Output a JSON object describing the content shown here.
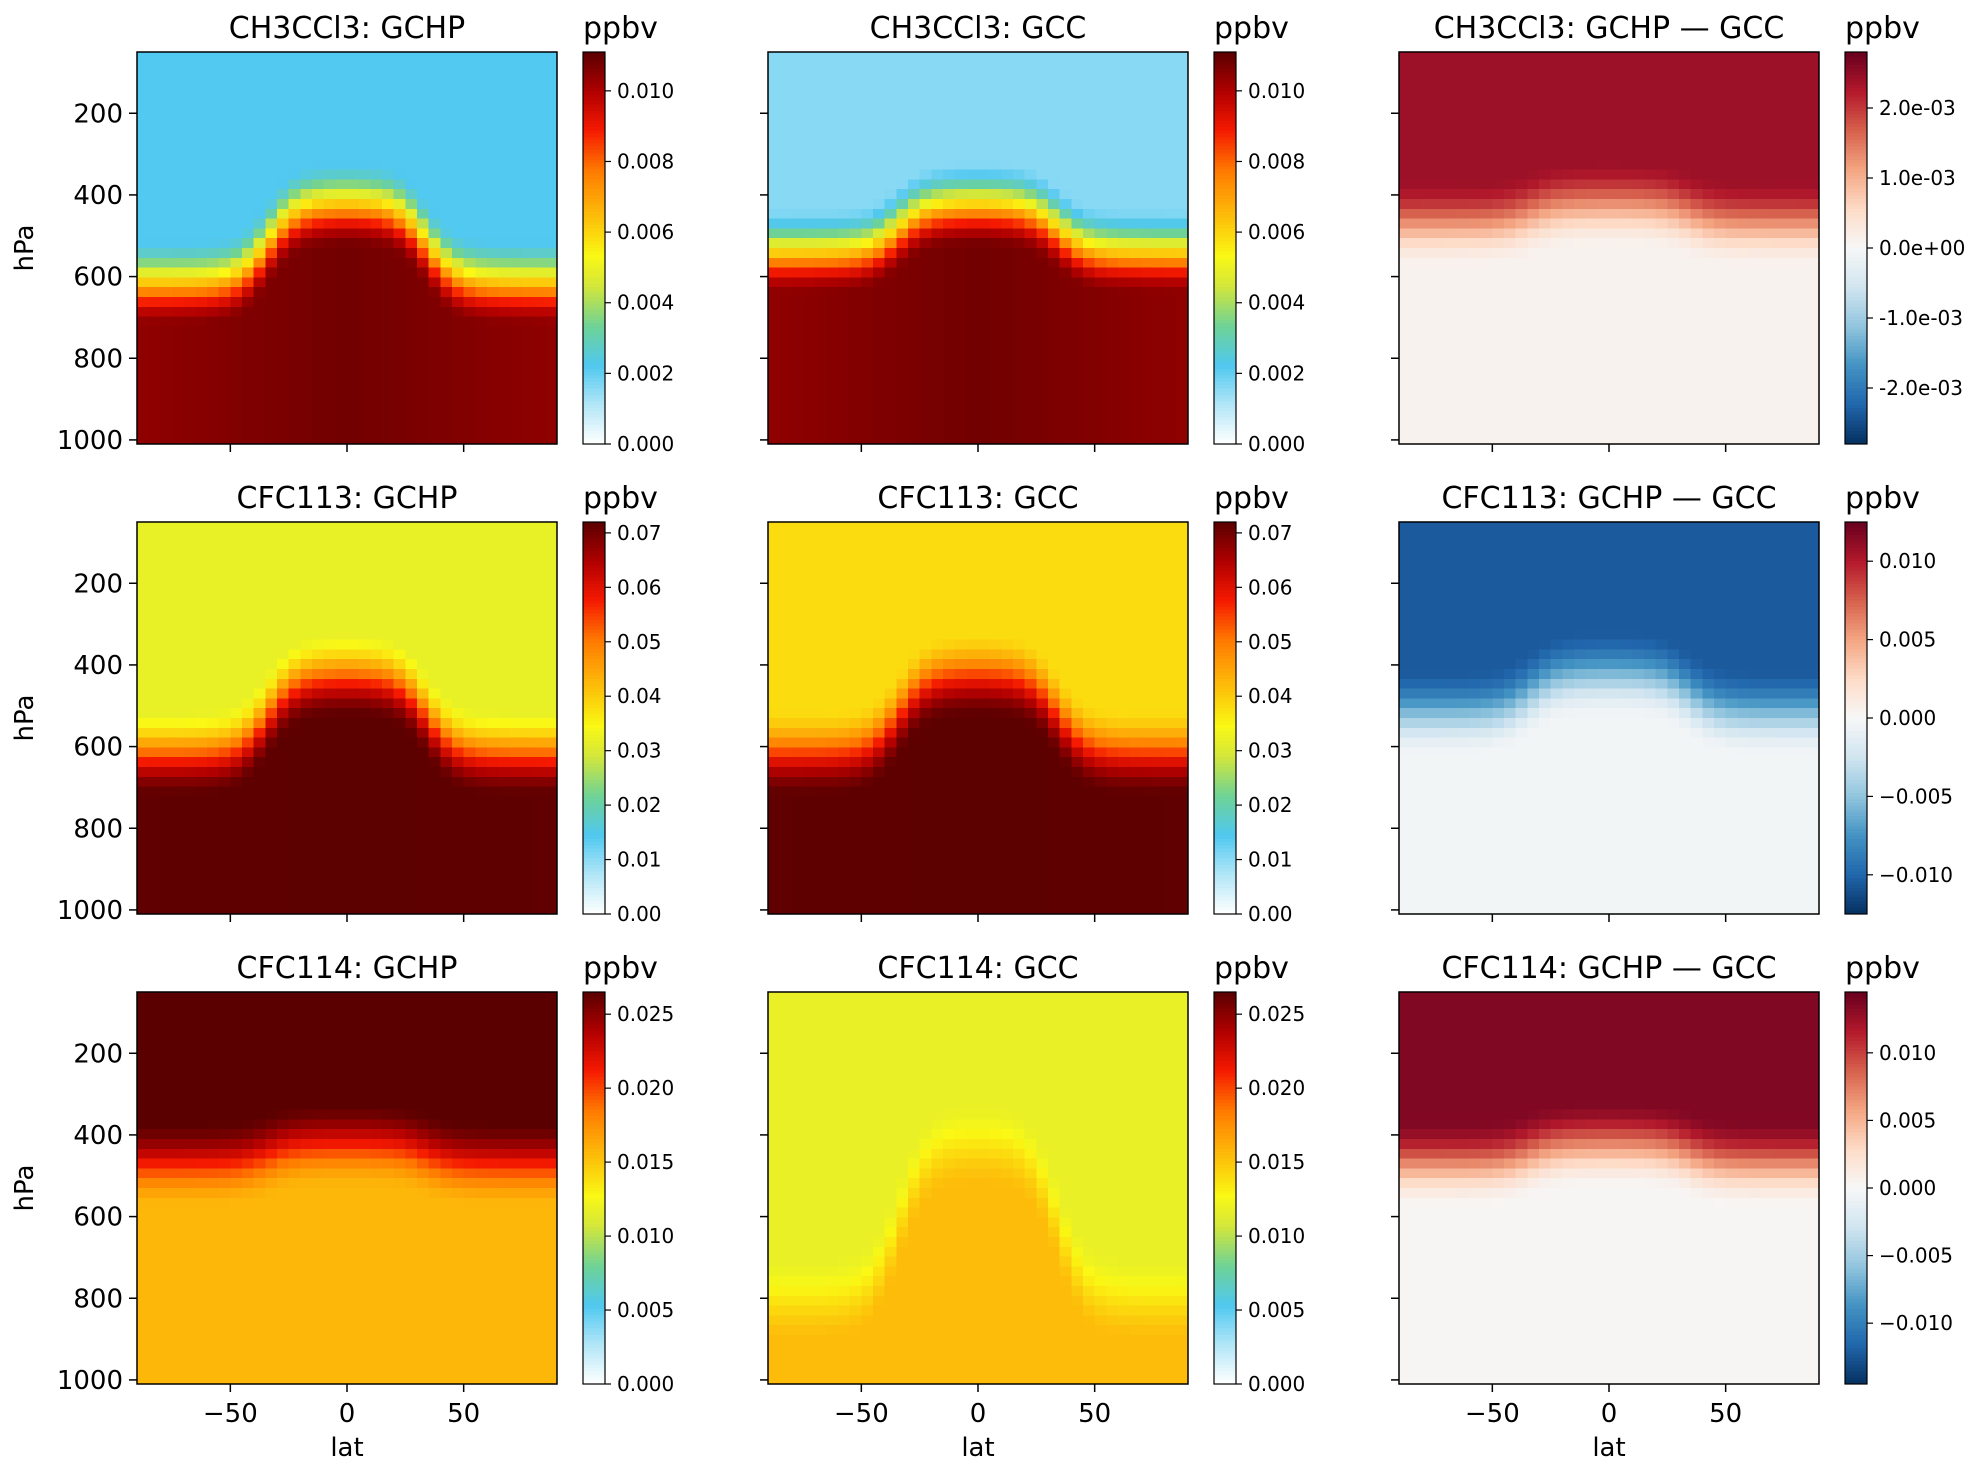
{
  "chart_data": {
    "type": "heatmap",
    "figure": "zonal mean vertical cross-sections",
    "rows": [
      {
        "species": "CH3CCl3",
        "panels": [
          {
            "title": "CH3CCl3: GCHP",
            "cbar_label": "ppbv",
            "colormap": "WhGrYlRd",
            "vmin": 0.0,
            "vmax": 0.0111,
            "cbar_ticks": [
              0.0,
              0.002,
              0.004,
              0.006,
              0.008,
              0.01
            ],
            "cbar_tick_labels": [
              "0.000",
              "0.002",
              "0.004",
              "0.006",
              "0.008",
              "0.010"
            ],
            "pattern": {
              "trop": 0.0104,
              "core": 0.0108,
              "top": 0.0022,
              "strat_start": 0.3,
              "width": 0.22
            }
          },
          {
            "title": "CH3CCl3: GCC",
            "cbar_label": "ppbv",
            "colormap": "WhGrYlRd",
            "vmin": 0.0,
            "vmax": 0.0111,
            "cbar_ticks": [
              0.0,
              0.002,
              0.004,
              0.006,
              0.008,
              0.01
            ],
            "cbar_tick_labels": [
              "0.000",
              "0.002",
              "0.004",
              "0.006",
              "0.008",
              "0.010"
            ],
            "pattern": {
              "trop": 0.0104,
              "core": 0.0108,
              "top": 0.0016,
              "strat_start": 0.38,
              "width": 0.22
            }
          },
          {
            "title": "CH3CCl3: GCHP — GCC",
            "cbar_label": "ppbv",
            "colormap": "RdBu_r",
            "vmin": -0.0028,
            "vmax": 0.0028,
            "cbar_ticks": [
              -0.002,
              -0.001,
              0.0,
              0.001,
              0.002
            ],
            "cbar_tick_labels": [
              "-2.0e-03",
              "-1.0e-03",
              "0.0e+00",
              "1.0e-03",
              "2.0e-03"
            ],
            "pattern": {
              "trop": 0.0001,
              "core": 0.0001,
              "top": 0.0024,
              "strat_start": 0.45,
              "width": 0.22
            }
          }
        ]
      },
      {
        "species": "CFC113",
        "panels": [
          {
            "title": "CFC113: GCHP",
            "cbar_label": "ppbv",
            "colormap": "WhGrYlRd",
            "vmin": 0.0,
            "vmax": 0.072,
            "cbar_ticks": [
              0.0,
              0.01,
              0.02,
              0.03,
              0.04,
              0.05,
              0.06,
              0.07
            ],
            "cbar_tick_labels": [
              "0.00",
              "0.01",
              "0.02",
              "0.03",
              "0.04",
              "0.05",
              "0.06",
              "0.07"
            ],
            "pattern": {
              "trop": 0.0715,
              "core": 0.0718,
              "top": 0.032,
              "strat_start": 0.3,
              "width": 0.22
            }
          },
          {
            "title": "CFC113: GCC",
            "cbar_label": "ppbv",
            "colormap": "WhGrYlRd",
            "vmin": 0.0,
            "vmax": 0.072,
            "cbar_ticks": [
              0.0,
              0.01,
              0.02,
              0.03,
              0.04,
              0.05,
              0.06,
              0.07
            ],
            "cbar_tick_labels": [
              "0.00",
              "0.01",
              "0.02",
              "0.03",
              "0.04",
              "0.05",
              "0.06",
              "0.07"
            ],
            "pattern": {
              "trop": 0.0715,
              "core": 0.0718,
              "top": 0.038,
              "strat_start": 0.3,
              "width": 0.22
            }
          },
          {
            "title": "CFC113: GCHP — GCC",
            "cbar_label": "ppbv",
            "colormap": "RdBu_r",
            "vmin": -0.0125,
            "vmax": 0.0125,
            "cbar_ticks": [
              -0.01,
              -0.005,
              0.0,
              0.005,
              0.01
            ],
            "cbar_tick_labels": [
              "−0.010",
              "−0.005",
              "0.000",
              "0.005",
              "0.010"
            ],
            "pattern": {
              "trop": -0.0003,
              "core": -0.0003,
              "top": -0.0105,
              "strat_start": 0.4,
              "width": 0.22
            }
          }
        ]
      },
      {
        "species": "CFC114",
        "panels": [
          {
            "title": "CFC114: GCHP",
            "cbar_label": "ppbv",
            "colormap": "WhGrYlRd",
            "vmin": 0.0,
            "vmax": 0.0265,
            "cbar_ticks": [
              0.0,
              0.005,
              0.01,
              0.015,
              0.02,
              0.025
            ],
            "cbar_tick_labels": [
              "0.000",
              "0.005",
              "0.010",
              "0.015",
              "0.020",
              "0.025"
            ],
            "pattern": {
              "trop": 0.0157,
              "core": 0.0157,
              "top": 0.0265,
              "strat_start": 0.45,
              "width": 0.22
            }
          },
          {
            "title": "CFC114: GCC",
            "cbar_label": "ppbv",
            "colormap": "WhGrYlRd",
            "vmin": 0.0,
            "vmax": 0.0265,
            "cbar_ticks": [
              0.0,
              0.005,
              0.01,
              0.015,
              0.02,
              0.025
            ],
            "cbar_tick_labels": [
              "0.000",
              "0.005",
              "0.010",
              "0.015",
              "0.020",
              "0.025"
            ],
            "pattern": {
              "trop": 0.0155,
              "core": 0.0155,
              "top": 0.0118,
              "strat_start": 0.1,
              "width": 0.22
            }
          },
          {
            "title": "CFC114: GCHP — GCC",
            "cbar_label": "ppbv",
            "colormap": "RdBu_r",
            "vmin": -0.0145,
            "vmax": 0.0145,
            "cbar_ticks": [
              -0.01,
              -0.005,
              0.0,
              0.005,
              0.01
            ],
            "cbar_tick_labels": [
              "−0.010",
              "−0.005",
              "0.000",
              "0.005",
              "0.010"
            ],
            "pattern": {
              "trop": 0.0002,
              "core": 0.0002,
              "top": 0.0135,
              "strat_start": 0.45,
              "width": 0.22
            }
          }
        ]
      }
    ],
    "x_axis": {
      "label": "lat",
      "range": [
        -90,
        90
      ],
      "ticks": [
        -50,
        0,
        50
      ],
      "tick_labels": [
        "−50",
        "0",
        "50"
      ]
    },
    "y_axis": {
      "label": "hPa",
      "range": [
        1010,
        50
      ],
      "inverted": true,
      "ticks": [
        200,
        400,
        600,
        800,
        1000
      ],
      "tick_labels": [
        "200",
        "400",
        "600",
        "800",
        "1000"
      ]
    }
  }
}
